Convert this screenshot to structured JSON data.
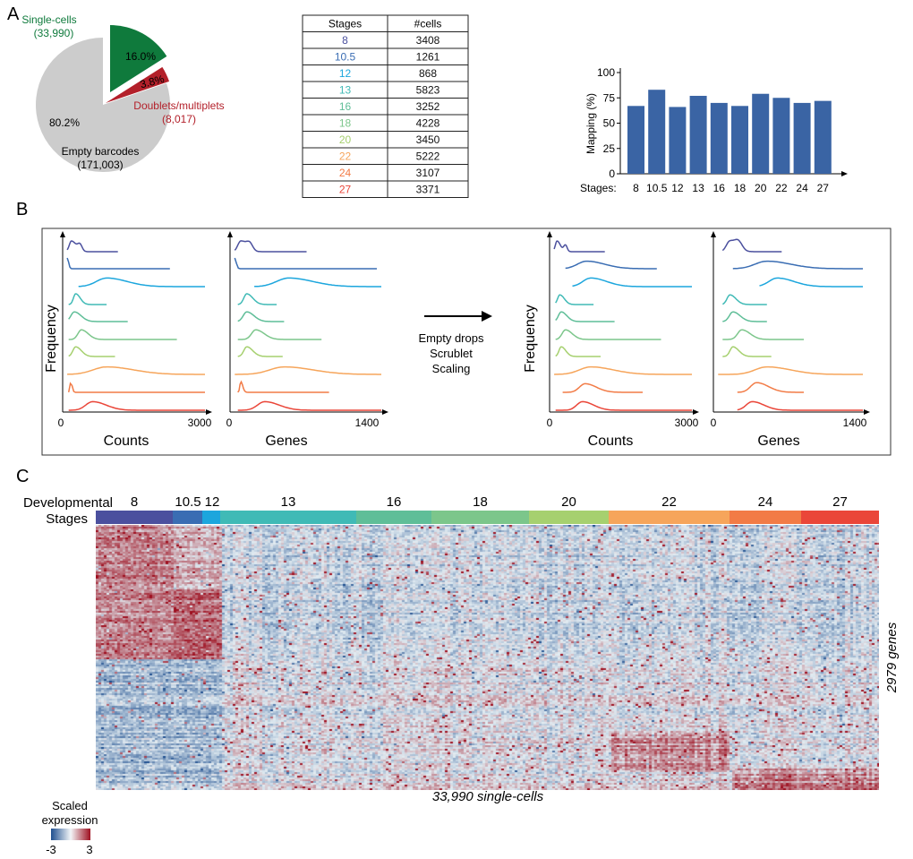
{
  "panels": {
    "a": "A",
    "b": "B",
    "c": "C"
  },
  "stage_colors": {
    "8": "#4b509e",
    "10.5": "#3a6db3",
    "12": "#1ca6dd",
    "13": "#40bab6",
    "16": "#5fbe98",
    "18": "#7cc68b",
    "20": "#a6d06f",
    "22": "#f6a55b",
    "24": "#f27b46",
    "27": "#ea4639"
  },
  "chart_data": [
    {
      "type": "pie",
      "slices": [
        {
          "label": "Single-cells",
          "count": "(33,990)",
          "value": 16.0,
          "pct_label": "16.0%",
          "color": "#0f7a3c",
          "exploded": true
        },
        {
          "label": "Doublets/multiplets",
          "count": "(8,017)",
          "value": 3.8,
          "pct_label": "3.8%",
          "color": "#b3202a"
        },
        {
          "label": "Empty barcodes",
          "count": "(171,003)",
          "value": 80.2,
          "pct_label": "80.2%",
          "color": "#cccccc"
        }
      ]
    },
    {
      "type": "table",
      "columns": [
        "Stages",
        "#cells"
      ],
      "rows": [
        [
          "8",
          "3408"
        ],
        [
          "10.5",
          "1261"
        ],
        [
          "12",
          "868"
        ],
        [
          "13",
          "5823"
        ],
        [
          "16",
          "3252"
        ],
        [
          "18",
          "4228"
        ],
        [
          "20",
          "3450"
        ],
        [
          "22",
          "5222"
        ],
        [
          "24",
          "3107"
        ],
        [
          "27",
          "3371"
        ]
      ]
    },
    {
      "type": "bar",
      "xlabel": "Stages:",
      "ylabel": "Mapping (%)",
      "categories": [
        "8",
        "10.5",
        "12",
        "13",
        "16",
        "18",
        "20",
        "22",
        "24",
        "27"
      ],
      "values": [
        67,
        83,
        66,
        77,
        70,
        67,
        79,
        75,
        70,
        72
      ],
      "ylim": [
        0,
        100
      ],
      "yticks": [
        "0",
        "25",
        "50",
        "75",
        "100"
      ],
      "color": "#3a64a4"
    },
    {
      "type": "line",
      "description_kind": "stacked density ridgelines per stage",
      "ylabel": "Frequency",
      "before": {
        "counts": {
          "xlabel": "Counts",
          "xticks": [
            "0",
            "3000"
          ]
        },
        "genes": {
          "xlabel": "Genes",
          "xticks": [
            "0",
            "1400"
          ]
        }
      },
      "after": {
        "counts": {
          "xlabel": "Counts",
          "xticks": [
            "0",
            "3000"
          ]
        },
        "genes": {
          "xlabel": "Genes",
          "xticks": [
            "0",
            "1400"
          ]
        }
      },
      "arrow_labels": [
        "Empty drops",
        "Scrublet",
        "Scaling"
      ]
    },
    {
      "type": "heatmap",
      "row_label_1": "Developmental",
      "row_label_2": "Stages",
      "stages": [
        "8",
        "10.5",
        "12",
        "13",
        "16",
        "18",
        "20",
        "22",
        "24",
        "27"
      ],
      "xlabel": "33,990 single-cells",
      "ylabel": "2979 genes",
      "colorbar": {
        "title_1": "Scaled",
        "title_2": "expression",
        "min": "-3",
        "max": "3",
        "colors": [
          "#1f4f8f",
          "#f3f6f8",
          "#9e1020"
        ]
      }
    }
  ]
}
